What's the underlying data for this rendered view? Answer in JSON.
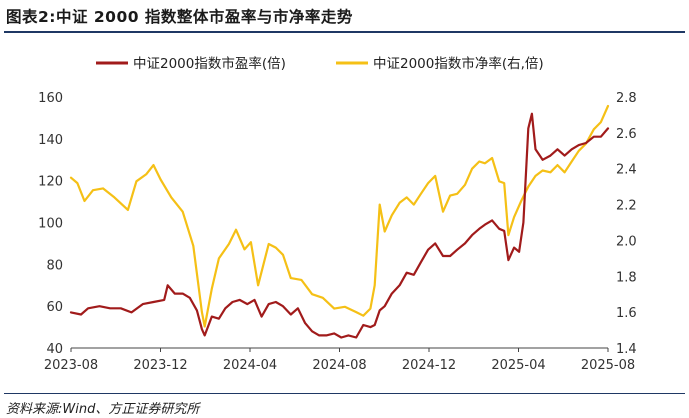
{
  "header": {
    "title": "图表2:中证 2000 指数整体市盈率与市净率走势"
  },
  "footer": {
    "source": "资料来源:Wind、方正证券研究所"
  },
  "chart_data": {
    "type": "line",
    "title": "",
    "xlabel": "",
    "ylabel": "",
    "x_ticks": [
      "2023-08",
      "2023-12",
      "2024-04",
      "2024-08",
      "2024-12",
      "2025-04",
      "2025-08"
    ],
    "x_range": [
      "2023-08-01",
      "2025-08-25"
    ],
    "grid": false,
    "legend_position": "top",
    "y_left": {
      "ticks": [
        "40",
        "60",
        "80",
        "100",
        "120",
        "140",
        "160"
      ],
      "range": [
        40,
        160
      ]
    },
    "y_right": {
      "ticks": [
        "1.4",
        "1.6",
        "1.8",
        "2.0",
        "2.2",
        "2.4",
        "2.6",
        "2.8"
      ],
      "range": [
        1.4,
        2.8
      ]
    },
    "series": [
      {
        "name": "中证2000指数市盈率(倍)",
        "axis": "left",
        "color": "#a11b1b",
        "points": [
          [
            "2023-08-01",
            57
          ],
          [
            "2023-08-15",
            56
          ],
          [
            "2023-08-25",
            59
          ],
          [
            "2023-09-10",
            60
          ],
          [
            "2023-09-25",
            59
          ],
          [
            "2023-10-10",
            59
          ],
          [
            "2023-10-25",
            57
          ],
          [
            "2023-11-10",
            61
          ],
          [
            "2023-11-25",
            62
          ],
          [
            "2023-12-10",
            63
          ],
          [
            "2023-12-15",
            70
          ],
          [
            "2023-12-25",
            66
          ],
          [
            "2024-01-05",
            66
          ],
          [
            "2024-01-15",
            64
          ],
          [
            "2024-01-25",
            58
          ],
          [
            "2024-02-01",
            49
          ],
          [
            "2024-02-05",
            46
          ],
          [
            "2024-02-15",
            55
          ],
          [
            "2024-02-25",
            54
          ],
          [
            "2024-03-05",
            59
          ],
          [
            "2024-03-15",
            62
          ],
          [
            "2024-03-25",
            63
          ],
          [
            "2024-04-05",
            61
          ],
          [
            "2024-04-15",
            63
          ],
          [
            "2024-04-25",
            55
          ],
          [
            "2024-05-05",
            61
          ],
          [
            "2024-05-15",
            62
          ],
          [
            "2024-05-25",
            60
          ],
          [
            "2024-06-05",
            56
          ],
          [
            "2024-06-15",
            59
          ],
          [
            "2024-06-25",
            52
          ],
          [
            "2024-07-05",
            48
          ],
          [
            "2024-07-15",
            46
          ],
          [
            "2024-07-25",
            46
          ],
          [
            "2024-08-05",
            47
          ],
          [
            "2024-08-15",
            45
          ],
          [
            "2024-08-25",
            46
          ],
          [
            "2024-09-05",
            45
          ],
          [
            "2024-09-15",
            51
          ],
          [
            "2024-09-25",
            50
          ],
          [
            "2024-10-01",
            51
          ],
          [
            "2024-10-08",
            58
          ],
          [
            "2024-10-15",
            60
          ],
          [
            "2024-10-25",
            66
          ],
          [
            "2024-11-05",
            70
          ],
          [
            "2024-11-15",
            76
          ],
          [
            "2024-11-25",
            75
          ],
          [
            "2024-12-05",
            81
          ],
          [
            "2024-12-15",
            87
          ],
          [
            "2024-12-25",
            90
          ],
          [
            "2025-01-05",
            84
          ],
          [
            "2025-01-15",
            84
          ],
          [
            "2025-01-25",
            87
          ],
          [
            "2025-02-05",
            90
          ],
          [
            "2025-02-15",
            94
          ],
          [
            "2025-02-25",
            97
          ],
          [
            "2025-03-05",
            99
          ],
          [
            "2025-03-15",
            101
          ],
          [
            "2025-03-25",
            97
          ],
          [
            "2025-04-01",
            96
          ],
          [
            "2025-04-07",
            82
          ],
          [
            "2025-04-15",
            88
          ],
          [
            "2025-04-22",
            86
          ],
          [
            "2025-04-28",
            100
          ],
          [
            "2025-05-05",
            145
          ],
          [
            "2025-05-10",
            152
          ],
          [
            "2025-05-15",
            135
          ],
          [
            "2025-05-25",
            130
          ],
          [
            "2025-06-05",
            132
          ],
          [
            "2025-06-15",
            135
          ],
          [
            "2025-06-25",
            132
          ],
          [
            "2025-07-05",
            135
          ],
          [
            "2025-07-15",
            137
          ],
          [
            "2025-07-25",
            138
          ],
          [
            "2025-08-05",
            141
          ],
          [
            "2025-08-15",
            141
          ],
          [
            "2025-08-25",
            145
          ]
        ]
      },
      {
        "name": "中证2000指数市净率(右,倍)",
        "axis": "right",
        "color": "#f5c016",
        "points": [
          [
            "2023-08-01",
            2.35
          ],
          [
            "2023-08-10",
            2.32
          ],
          [
            "2023-08-20",
            2.22
          ],
          [
            "2023-09-01",
            2.28
          ],
          [
            "2023-09-15",
            2.29
          ],
          [
            "2023-10-01",
            2.24
          ],
          [
            "2023-10-20",
            2.17
          ],
          [
            "2023-11-01",
            2.33
          ],
          [
            "2023-11-15",
            2.37
          ],
          [
            "2023-11-25",
            2.42
          ],
          [
            "2023-12-05",
            2.34
          ],
          [
            "2023-12-20",
            2.24
          ],
          [
            "2024-01-05",
            2.16
          ],
          [
            "2024-01-20",
            1.97
          ],
          [
            "2024-02-01",
            1.6
          ],
          [
            "2024-02-05",
            1.52
          ],
          [
            "2024-02-15",
            1.73
          ],
          [
            "2024-02-25",
            1.9
          ],
          [
            "2024-03-10",
            1.98
          ],
          [
            "2024-03-20",
            2.06
          ],
          [
            "2024-04-01",
            1.95
          ],
          [
            "2024-04-10",
            1.99
          ],
          [
            "2024-04-20",
            1.75
          ],
          [
            "2024-05-05",
            1.98
          ],
          [
            "2024-05-15",
            1.96
          ],
          [
            "2024-05-25",
            1.92
          ],
          [
            "2024-06-05",
            1.79
          ],
          [
            "2024-06-20",
            1.78
          ],
          [
            "2024-07-05",
            1.7
          ],
          [
            "2024-07-20",
            1.68
          ],
          [
            "2024-08-05",
            1.62
          ],
          [
            "2024-08-20",
            1.63
          ],
          [
            "2024-09-05",
            1.6
          ],
          [
            "2024-09-15",
            1.58
          ],
          [
            "2024-09-25",
            1.62
          ],
          [
            "2024-10-01",
            1.75
          ],
          [
            "2024-10-08",
            2.2
          ],
          [
            "2024-10-15",
            2.05
          ],
          [
            "2024-10-25",
            2.14
          ],
          [
            "2024-11-05",
            2.21
          ],
          [
            "2024-11-15",
            2.24
          ],
          [
            "2024-11-25",
            2.2
          ],
          [
            "2024-12-05",
            2.26
          ],
          [
            "2024-12-15",
            2.32
          ],
          [
            "2024-12-25",
            2.36
          ],
          [
            "2025-01-05",
            2.16
          ],
          [
            "2025-01-15",
            2.25
          ],
          [
            "2025-01-25",
            2.26
          ],
          [
            "2025-02-05",
            2.31
          ],
          [
            "2025-02-15",
            2.4
          ],
          [
            "2025-02-25",
            2.44
          ],
          [
            "2025-03-05",
            2.43
          ],
          [
            "2025-03-15",
            2.46
          ],
          [
            "2025-03-25",
            2.33
          ],
          [
            "2025-04-01",
            2.32
          ],
          [
            "2025-04-07",
            2.03
          ],
          [
            "2025-04-15",
            2.13
          ],
          [
            "2025-04-25",
            2.22
          ],
          [
            "2025-05-05",
            2.3
          ],
          [
            "2025-05-15",
            2.36
          ],
          [
            "2025-05-25",
            2.39
          ],
          [
            "2025-06-05",
            2.38
          ],
          [
            "2025-06-15",
            2.42
          ],
          [
            "2025-06-25",
            2.38
          ],
          [
            "2025-07-05",
            2.44
          ],
          [
            "2025-07-15",
            2.5
          ],
          [
            "2025-07-25",
            2.54
          ],
          [
            "2025-08-05",
            2.62
          ],
          [
            "2025-08-15",
            2.66
          ],
          [
            "2025-08-25",
            2.75
          ]
        ]
      }
    ]
  }
}
